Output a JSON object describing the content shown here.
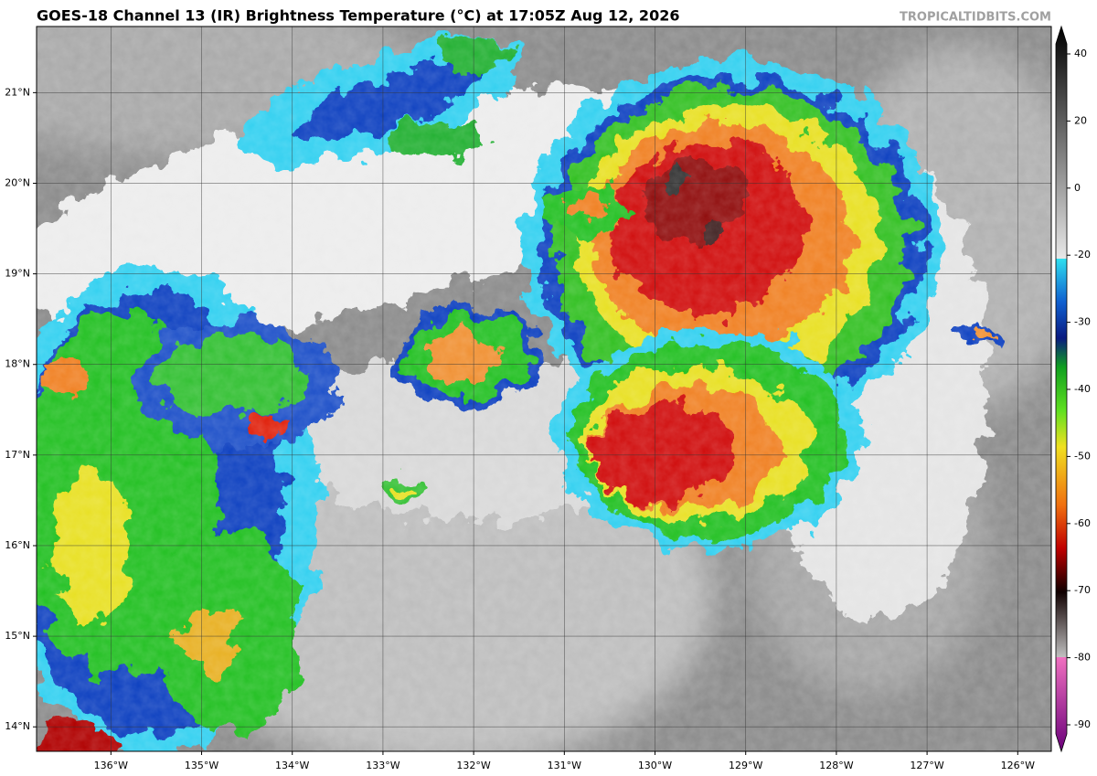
{
  "title": "GOES-18 Channel 13 (IR) Brightness Temperature (°C) at 17:05Z Aug 12, 2026",
  "watermark": "TROPICALTIDBITS.COM",
  "map": {
    "lon_range": [
      -136.82,
      -125.63
    ],
    "lat_range": [
      13.73,
      21.73
    ],
    "lat_ticks": [
      {
        "value": 21,
        "label": "21°N"
      },
      {
        "value": 20,
        "label": "20°N"
      },
      {
        "value": 19,
        "label": "19°N"
      },
      {
        "value": 18,
        "label": "18°N"
      },
      {
        "value": 17,
        "label": "17°N"
      },
      {
        "value": 16,
        "label": "16°N"
      },
      {
        "value": 15,
        "label": "15°N"
      },
      {
        "value": 14,
        "label": "14°N"
      }
    ],
    "lon_ticks": [
      {
        "value": -136,
        "label": "136°W"
      },
      {
        "value": -135,
        "label": "135°W"
      },
      {
        "value": -134,
        "label": "134°W"
      },
      {
        "value": -133,
        "label": "133°W"
      },
      {
        "value": -132,
        "label": "132°W"
      },
      {
        "value": -131,
        "label": "131°W"
      },
      {
        "value": -130,
        "label": "130°W"
      },
      {
        "value": -129,
        "label": "129°W"
      },
      {
        "value": -128,
        "label": "128°W"
      },
      {
        "value": -127,
        "label": "127°W"
      },
      {
        "value": -126,
        "label": "126°W"
      }
    ]
  },
  "colorbar": {
    "ticks": [
      40,
      20,
      0,
      -20,
      -30,
      -40,
      -50,
      -60,
      -70,
      -80,
      -90
    ]
  }
}
